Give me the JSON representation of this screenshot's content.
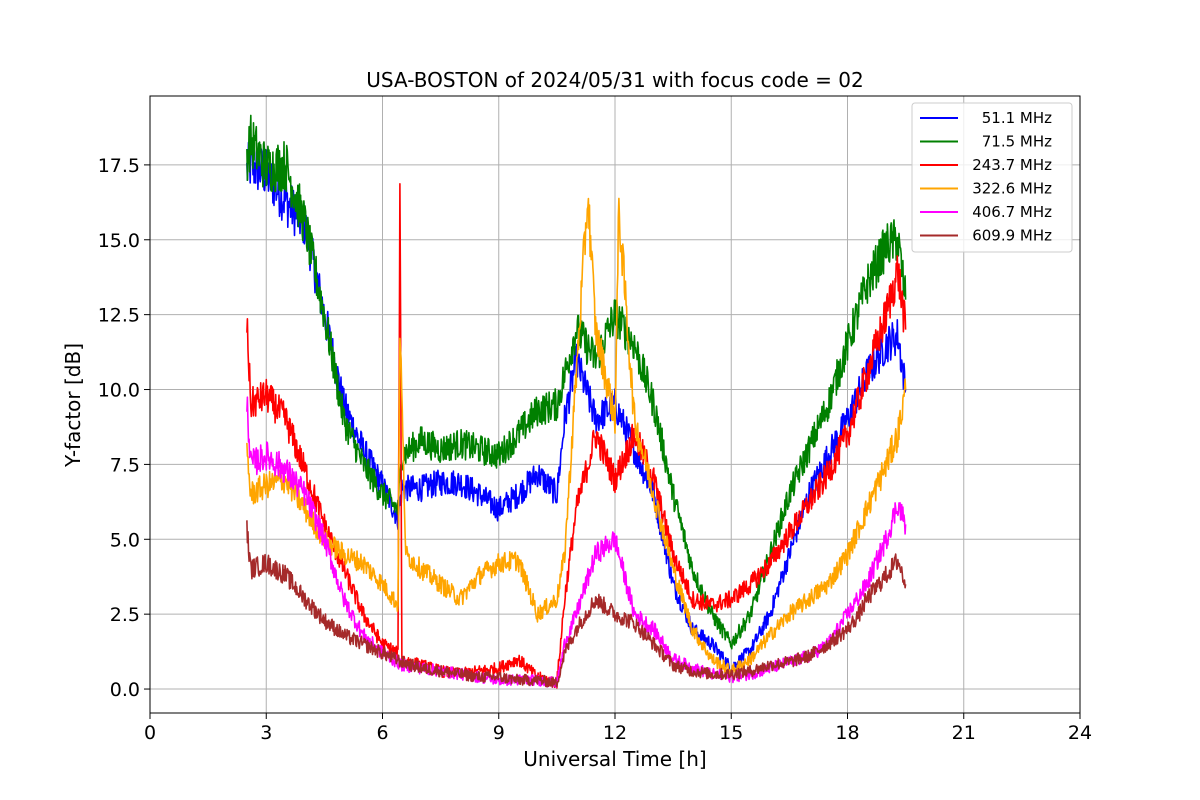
{
  "chart_data": {
    "type": "line",
    "title": "USA-BOSTON of 2024/05/31 with focus code = 02",
    "xlabel": "Universal Time [h]",
    "ylabel": "Y-factor [dB]",
    "xlim": [
      0,
      24
    ],
    "ylim": [
      -0.8,
      19.8
    ],
    "x_ticks": [
      0,
      3,
      6,
      9,
      12,
      15,
      18,
      21,
      24
    ],
    "x_tick_labels": [
      "0",
      "3",
      "6",
      "9",
      "12",
      "15",
      "18",
      "21",
      "24"
    ],
    "y_ticks": [
      0.0,
      2.5,
      5.0,
      7.5,
      10.0,
      12.5,
      15.0,
      17.5
    ],
    "y_tick_labels": [
      "0.0",
      "2.5",
      "5.0",
      "7.5",
      "10.0",
      "12.5",
      "15.0",
      "17.5"
    ],
    "grid": true,
    "legend_position": "top-right",
    "noise_band": 0.5,
    "series": [
      {
        "name": "51.1 MHz",
        "color": "#0000ff",
        "x": [
          2.5,
          2.6,
          3.0,
          3.5,
          4.0,
          4.5,
          5.0,
          5.5,
          6.0,
          6.4,
          6.5,
          7.0,
          7.5,
          8.0,
          8.5,
          9.0,
          9.5,
          10.0,
          10.5,
          10.7,
          11.0,
          11.5,
          12.0,
          12.5,
          13.0,
          13.5,
          14.0,
          14.5,
          15.0,
          15.5,
          16.0,
          16.5,
          17.0,
          17.5,
          18.0,
          18.5,
          19.0,
          19.3,
          19.5
        ],
        "y": [
          17.3,
          17.5,
          17.2,
          16.3,
          15.5,
          12.5,
          9.5,
          8.0,
          6.8,
          5.7,
          6.7,
          6.7,
          6.9,
          6.9,
          6.5,
          6.0,
          6.5,
          7.2,
          6.5,
          9.0,
          11.0,
          9.0,
          9.5,
          8.0,
          6.5,
          3.5,
          2.0,
          1.5,
          0.7,
          1.3,
          2.5,
          4.5,
          6.5,
          7.8,
          9.0,
          10.5,
          11.5,
          11.8,
          10.0
        ]
      },
      {
        "name": "71.5 MHz",
        "color": "#008000",
        "x": [
          2.5,
          2.6,
          3.0,
          3.5,
          4.0,
          4.5,
          5.0,
          5.5,
          6.0,
          6.4,
          6.5,
          7.0,
          7.5,
          8.0,
          8.5,
          9.0,
          9.5,
          10.0,
          10.5,
          10.7,
          11.0,
          11.5,
          12.0,
          12.5,
          13.0,
          13.5,
          14.0,
          14.5,
          15.0,
          15.5,
          16.0,
          16.5,
          17.0,
          17.5,
          18.0,
          18.5,
          19.0,
          19.3,
          19.5
        ],
        "y": [
          17.8,
          18.3,
          17.4,
          17.5,
          15.5,
          12.5,
          9.0,
          7.5,
          6.5,
          6.0,
          7.8,
          8.3,
          8.0,
          8.2,
          8.0,
          7.8,
          8.5,
          9.3,
          9.5,
          10.5,
          12.0,
          11.0,
          12.5,
          11.5,
          9.5,
          6.5,
          4.0,
          2.5,
          1.5,
          2.5,
          4.5,
          6.5,
          8.0,
          9.5,
          11.5,
          13.5,
          14.8,
          15.0,
          13.0
        ]
      },
      {
        "name": "243.7 MHz",
        "color": "#ff0000",
        "x": [
          2.5,
          2.6,
          3.0,
          3.5,
          4.0,
          4.5,
          5.0,
          5.5,
          6.0,
          6.4,
          6.45,
          6.5,
          7.0,
          7.5,
          8.0,
          8.5,
          9.0,
          9.5,
          10.0,
          10.5,
          10.7,
          11.0,
          11.5,
          12.0,
          12.5,
          13.0,
          13.5,
          14.0,
          14.5,
          15.0,
          15.5,
          16.0,
          16.5,
          17.0,
          17.5,
          18.0,
          18.5,
          19.0,
          19.3,
          19.5
        ],
        "y": [
          12.3,
          9.5,
          9.8,
          9.0,
          7.3,
          5.5,
          4.0,
          2.5,
          1.5,
          1.2,
          17.2,
          1.0,
          0.8,
          0.6,
          0.5,
          0.6,
          0.7,
          1.0,
          0.4,
          0.2,
          3.0,
          6.0,
          8.5,
          7.0,
          8.5,
          7.0,
          4.5,
          3.0,
          2.8,
          3.0,
          3.5,
          4.2,
          5.2,
          6.2,
          7.2,
          8.5,
          10.5,
          12.5,
          14.0,
          12.0
        ]
      },
      {
        "name": "322.6 MHz",
        "color": "#ffa500",
        "x": [
          2.5,
          2.6,
          3.0,
          3.5,
          4.0,
          4.5,
          5.0,
          5.5,
          6.0,
          6.4,
          6.45,
          6.6,
          7.0,
          7.5,
          8.0,
          8.5,
          9.0,
          9.5,
          10.0,
          10.5,
          10.7,
          11.0,
          11.3,
          11.5,
          12.0,
          12.1,
          12.5,
          13.0,
          13.5,
          14.0,
          14.5,
          15.0,
          15.5,
          16.0,
          16.5,
          17.0,
          17.5,
          18.0,
          18.5,
          19.0,
          19.3,
          19.5
        ],
        "y": [
          8.0,
          6.5,
          6.8,
          7.0,
          6.0,
          5.0,
          4.5,
          4.2,
          3.5,
          2.8,
          12.2,
          4.5,
          4.0,
          3.5,
          3.0,
          3.8,
          4.2,
          4.3,
          2.5,
          3.0,
          4.5,
          10.5,
          16.5,
          12.0,
          9.0,
          16.0,
          9.0,
          6.5,
          4.0,
          2.0,
          1.0,
          0.6,
          1.0,
          1.8,
          2.5,
          3.0,
          3.5,
          4.5,
          6.0,
          7.5,
          8.5,
          10.0
        ]
      },
      {
        "name": "406.7 MHz",
        "color": "#ff00ff",
        "x": [
          2.5,
          2.6,
          3.0,
          3.5,
          4.0,
          4.5,
          5.0,
          5.5,
          6.0,
          6.5,
          7.0,
          7.5,
          8.0,
          8.5,
          9.0,
          9.5,
          10.0,
          10.5,
          10.7,
          11.0,
          11.5,
          12.0,
          12.5,
          13.0,
          13.5,
          14.0,
          14.5,
          15.0,
          15.5,
          16.0,
          16.5,
          17.0,
          17.5,
          18.0,
          18.5,
          19.0,
          19.3,
          19.5
        ],
        "y": [
          9.7,
          7.5,
          7.8,
          7.3,
          6.5,
          5.0,
          3.0,
          1.8,
          1.2,
          0.8,
          0.7,
          0.6,
          0.5,
          0.4,
          0.3,
          0.3,
          0.3,
          0.2,
          1.5,
          2.5,
          4.5,
          5.0,
          2.5,
          2.0,
          1.0,
          0.7,
          0.5,
          0.4,
          0.5,
          0.7,
          0.9,
          1.1,
          1.5,
          2.5,
          3.5,
          5.0,
          6.2,
          5.5
        ]
      },
      {
        "name": "609.9 MHz",
        "color": "#a52a2a",
        "x": [
          2.5,
          2.6,
          3.0,
          3.5,
          4.0,
          4.5,
          5.0,
          5.5,
          6.0,
          6.5,
          7.0,
          7.5,
          8.0,
          8.5,
          9.0,
          9.5,
          10.0,
          10.5,
          10.7,
          11.0,
          11.5,
          12.0,
          12.5,
          13.0,
          13.5,
          14.0,
          14.5,
          15.0,
          15.5,
          16.0,
          16.5,
          17.0,
          17.5,
          18.0,
          18.3,
          18.5,
          19.0,
          19.3,
          19.5
        ],
        "y": [
          5.3,
          4.0,
          4.2,
          3.8,
          3.0,
          2.3,
          1.8,
          1.5,
          1.2,
          0.9,
          0.7,
          0.6,
          0.5,
          0.4,
          0.4,
          0.3,
          0.3,
          0.2,
          1.2,
          2.0,
          3.0,
          2.5,
          2.2,
          1.5,
          0.8,
          0.6,
          0.5,
          0.5,
          0.6,
          0.8,
          0.9,
          1.1,
          1.5,
          2.0,
          2.5,
          3.0,
          3.8,
          4.3,
          3.5
        ]
      }
    ]
  }
}
